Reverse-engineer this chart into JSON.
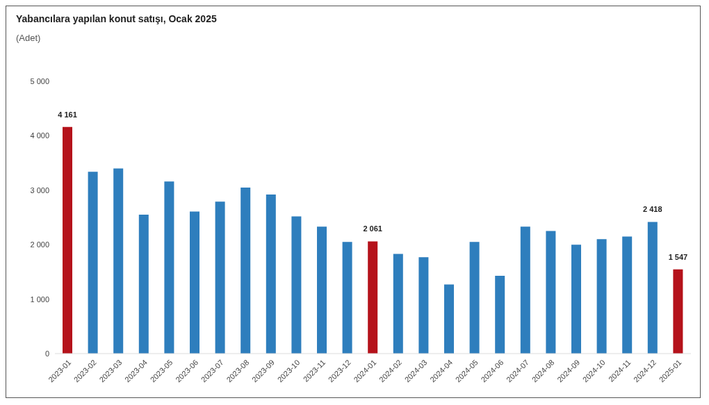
{
  "chart_data": {
    "type": "bar",
    "title": "Yabancılara yapılan konut satışı, Ocak 2025",
    "subtitle": "(Adet)",
    "categories": [
      "2023-01",
      "2023-02",
      "2023-03",
      "2023-04",
      "2023-05",
      "2023-06",
      "2023-07",
      "2023-08",
      "2023-09",
      "2023-10",
      "2023-11",
      "2023-12",
      "2024-01",
      "2024-02",
      "2024-03",
      "2024-04",
      "2024-05",
      "2024-06",
      "2024-07",
      "2024-08",
      "2024-09",
      "2024-10",
      "2024-11",
      "2024-12",
      "2025-01"
    ],
    "values": [
      4161,
      3340,
      3400,
      2550,
      3160,
      2610,
      2790,
      3050,
      2920,
      2520,
      2330,
      2050,
      2061,
      1830,
      1770,
      1270,
      2050,
      1430,
      2330,
      2250,
      2000,
      2100,
      2150,
      2418,
      1547
    ],
    "colors": [
      "#b5121b",
      "#2e7ebd",
      "#2e7ebd",
      "#2e7ebd",
      "#2e7ebd",
      "#2e7ebd",
      "#2e7ebd",
      "#2e7ebd",
      "#2e7ebd",
      "#2e7ebd",
      "#2e7ebd",
      "#2e7ebd",
      "#b5121b",
      "#2e7ebd",
      "#2e7ebd",
      "#2e7ebd",
      "#2e7ebd",
      "#2e7ebd",
      "#2e7ebd",
      "#2e7ebd",
      "#2e7ebd",
      "#2e7ebd",
      "#2e7ebd",
      "#2e7ebd",
      "#b5121b"
    ],
    "value_labels": [
      "4 161",
      null,
      null,
      null,
      null,
      null,
      null,
      null,
      null,
      null,
      null,
      null,
      "2 061",
      null,
      null,
      null,
      null,
      null,
      null,
      null,
      null,
      null,
      null,
      "2 418",
      "1 547"
    ],
    "ylim": [
      0,
      5000
    ],
    "yticks": [
      0,
      {
        "value": 1000,
        "label": "1 000"
      },
      {
        "value": 2000,
        "label": "2 000"
      },
      {
        "value": 3000,
        "label": "3 000"
      },
      {
        "value": 4000,
        "label": "4 000"
      },
      {
        "value": 5000,
        "label": "5 000"
      }
    ],
    "grid": false
  }
}
